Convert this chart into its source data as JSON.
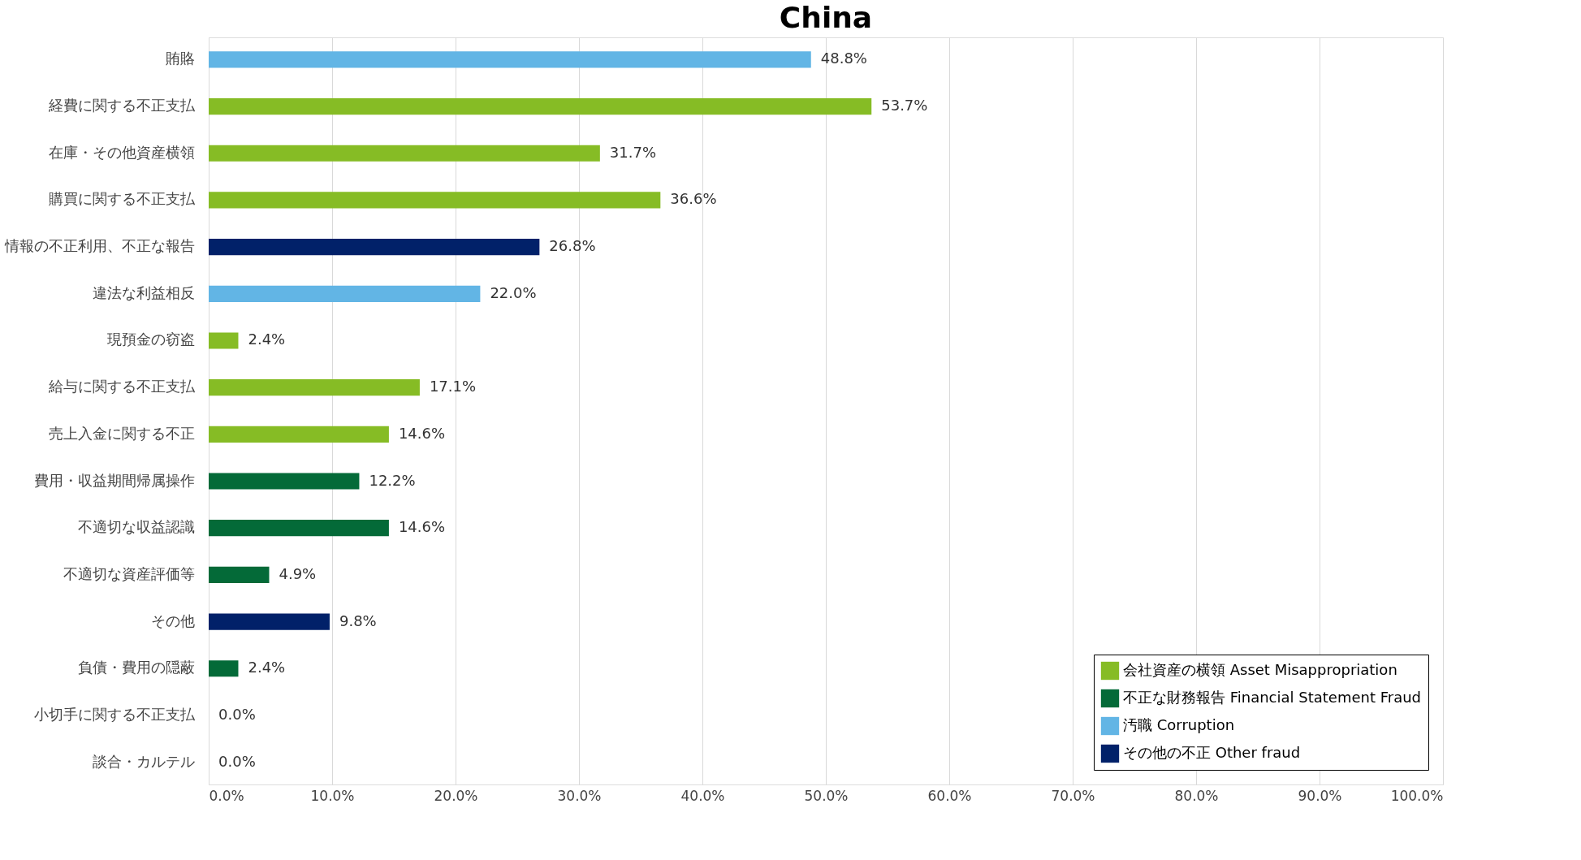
{
  "chart_data": {
    "type": "bar",
    "orientation": "horizontal",
    "title": "China",
    "categories": [
      "賄賂",
      "経費に関する不正支払",
      "在庫・その他資産横領",
      "購買に関する不正支払",
      "情報の不正利用、不正な報告",
      "違法な利益相反",
      "現預金の窃盗",
      "給与に関する不正支払",
      "売上入金に関する不正",
      "費用・収益期間帰属操作",
      "不適切な収益認識",
      "不適切な資産評価等",
      "その他",
      "負債・費用の隠蔽",
      "小切手に関する不正支払",
      "談合・カルテル"
    ],
    "series": [
      {
        "name": "会社資産の横領 Asset Misappropriation",
        "color": "#86bc25",
        "values": [
          null,
          53.7,
          31.7,
          36.6,
          null,
          null,
          2.4,
          17.1,
          14.6,
          null,
          null,
          null,
          null,
          null,
          0.0,
          null
        ],
        "value_labels": [
          null,
          "53.7%",
          "31.7%",
          "36.6%",
          null,
          null,
          "2.4%",
          "17.1%",
          "14.6%",
          null,
          null,
          null,
          null,
          null,
          "0.0%",
          null
        ]
      },
      {
        "name": "不正な財務報告 Financial Statement Fraud",
        "color": "#046a38",
        "values": [
          null,
          null,
          null,
          null,
          null,
          null,
          null,
          null,
          null,
          12.2,
          14.6,
          4.9,
          null,
          2.4,
          null,
          null
        ],
        "value_labels": [
          null,
          null,
          null,
          null,
          null,
          null,
          null,
          null,
          null,
          "12.2%",
          "14.6%",
          "4.9%",
          null,
          "2.4%",
          null,
          null
        ]
      },
      {
        "name": "汚職 Corruption",
        "color": "#62b5e5",
        "values": [
          48.8,
          null,
          null,
          null,
          null,
          22.0,
          null,
          null,
          null,
          null,
          null,
          null,
          null,
          null,
          null,
          0.0
        ],
        "value_labels": [
          "48.8%",
          null,
          null,
          null,
          null,
          "22.0%",
          null,
          null,
          null,
          null,
          null,
          null,
          null,
          null,
          null,
          "0.0%"
        ]
      },
      {
        "name": "その他の不正 Other fraud",
        "color": "#012169",
        "values": [
          null,
          null,
          null,
          null,
          26.8,
          null,
          null,
          null,
          null,
          null,
          null,
          null,
          9.8,
          null,
          null,
          null
        ],
        "value_labels": [
          null,
          null,
          null,
          null,
          "26.8%",
          null,
          null,
          null,
          null,
          null,
          null,
          null,
          "9.8%",
          null,
          null,
          null
        ]
      }
    ],
    "xlim": [
      0,
      100
    ],
    "xticks": [
      {
        "value": 0,
        "label": "0.0%"
      },
      {
        "value": 10,
        "label": "10.0%"
      },
      {
        "value": 20,
        "label": "20.0%"
      },
      {
        "value": 30,
        "label": "30.0%"
      },
      {
        "value": 40,
        "label": "40.0%"
      },
      {
        "value": 50,
        "label": "50.0%"
      },
      {
        "value": 60,
        "label": "60.0%"
      },
      {
        "value": 70,
        "label": "70.0%"
      },
      {
        "value": 80,
        "label": "80.0%"
      },
      {
        "value": 90,
        "label": "90.0%"
      },
      {
        "value": 100,
        "label": "100.0%"
      }
    ],
    "grid": "x",
    "legend": "bottom right"
  }
}
